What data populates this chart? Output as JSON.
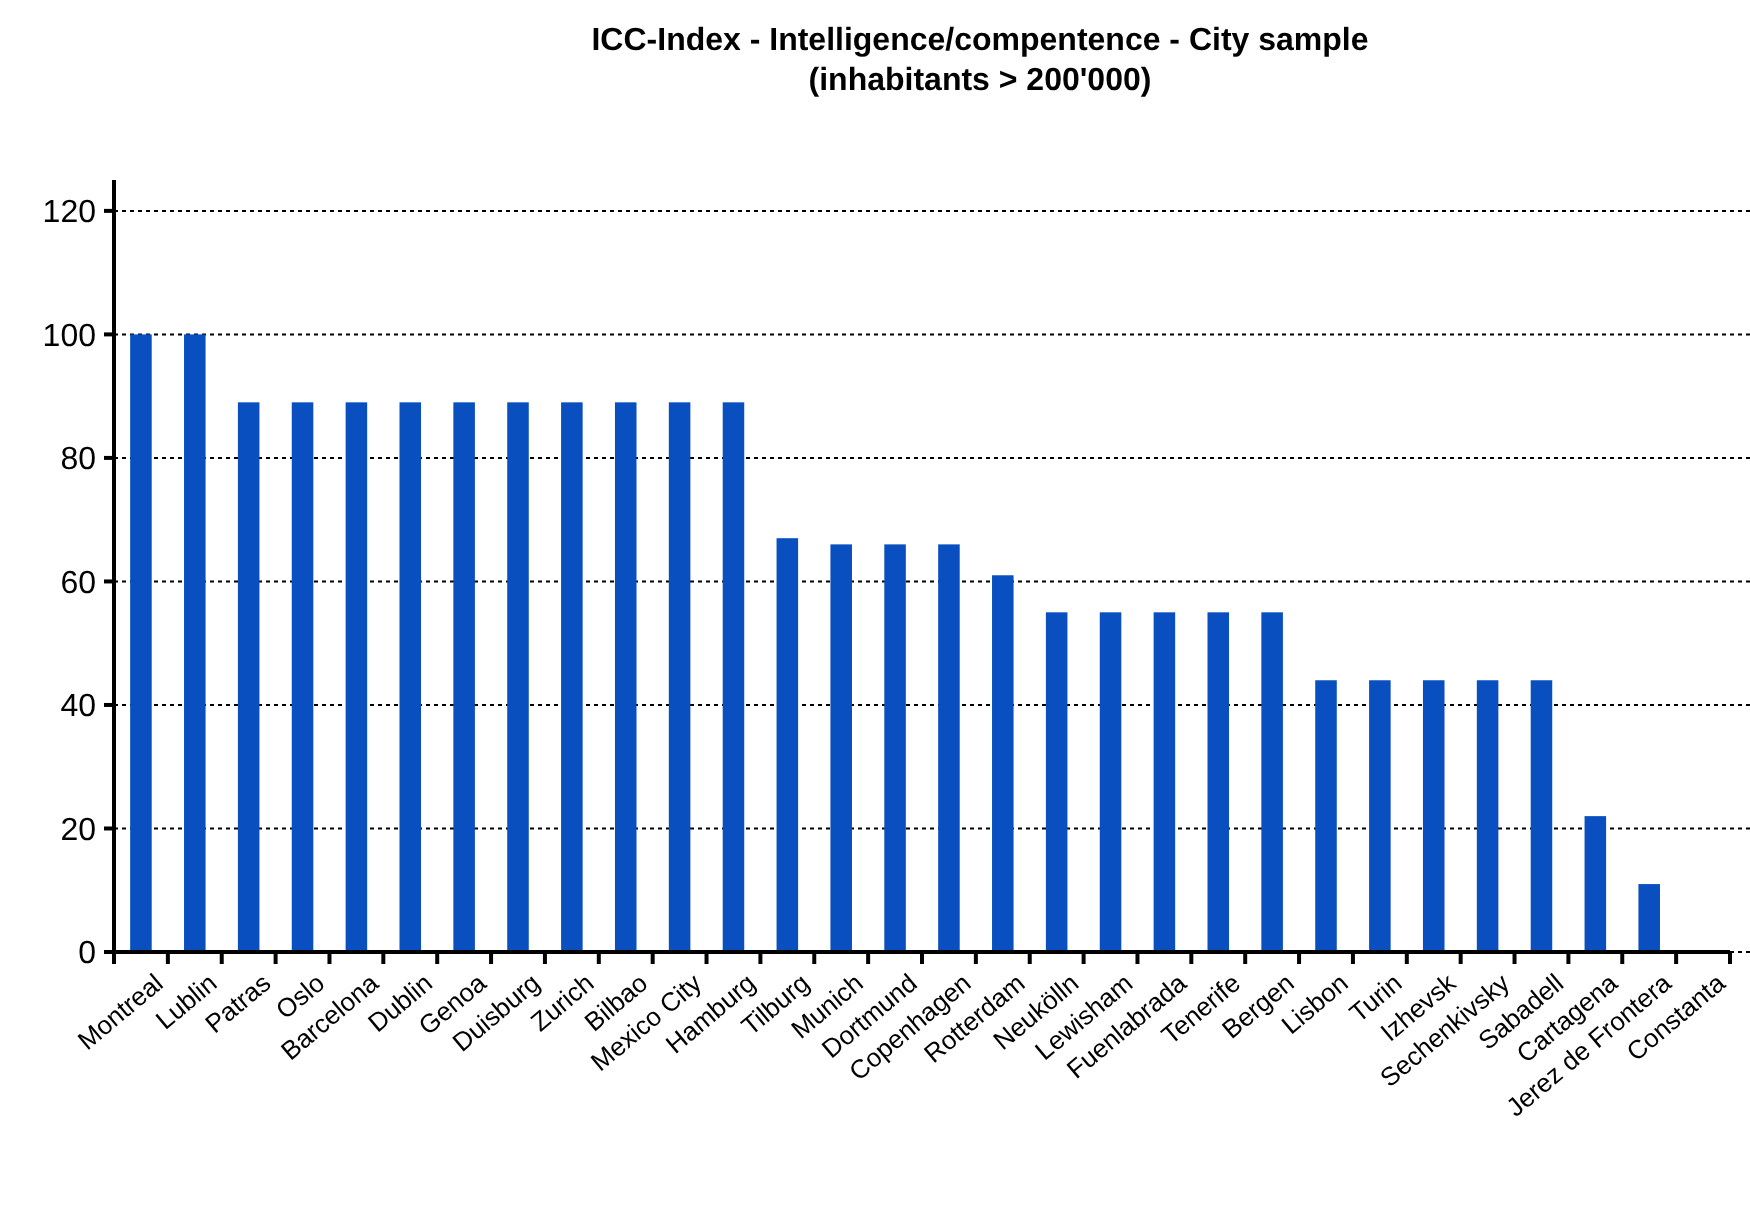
{
  "chart_data": {
    "type": "bar",
    "title": "ICC-Index - Intelligence/compentence - City sample (inhabitants > 200'000)",
    "categories": [
      "Montreal",
      "Lublin",
      "Patras",
      "Oslo",
      "Barcelona",
      "Dublin",
      "Genoa",
      "Duisburg",
      "Zurich",
      "Bilbao",
      "Mexico City",
      "Hamburg",
      "Tilburg",
      "Munich",
      "Dortmund",
      "Copenhagen",
      "Rotterdam",
      "Neukölln",
      "Lewisham",
      "Fuenlabrada",
      "Tenerife",
      "Bergen",
      "Lisbon",
      "Turin",
      "Izhevsk",
      "Sechenkivsky",
      "Sabadell",
      "Cartagena",
      "Jerez de Frontera",
      "Constanta"
    ],
    "values": [
      100,
      100,
      89,
      89,
      89,
      89,
      89,
      89,
      89,
      89,
      89,
      89,
      67,
      66,
      66,
      66,
      61,
      55,
      55,
      55,
      55,
      55,
      44,
      44,
      44,
      44,
      44,
      22,
      11,
      0
    ],
    "color": "#0a4fc0",
    "ylim": [
      0,
      125
    ],
    "yticks": [
      0,
      20,
      40,
      60,
      80,
      100,
      120
    ],
    "grid": "y"
  }
}
